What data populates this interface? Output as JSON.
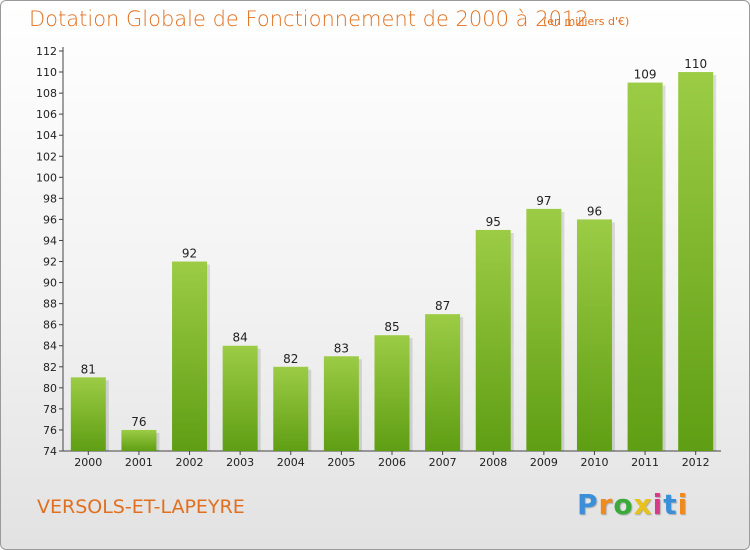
{
  "chart_data": {
    "type": "bar",
    "title": "Dotation Globale de Fonctionnement de 2000 à 2012",
    "subtitle": "(en milliers d'€)",
    "categories": [
      "2000",
      "2001",
      "2002",
      "2003",
      "2004",
      "2005",
      "2006",
      "2007",
      "2008",
      "2009",
      "2010",
      "2011",
      "2012"
    ],
    "values": [
      81,
      76,
      92,
      84,
      82,
      83,
      85,
      87,
      95,
      97,
      96,
      109,
      110
    ],
    "ylim": [
      74,
      112
    ],
    "yticks": [
      74,
      76,
      78,
      80,
      82,
      84,
      86,
      88,
      90,
      92,
      94,
      96,
      98,
      100,
      102,
      104,
      106,
      108,
      110,
      112
    ],
    "grid": false,
    "bar_color_top": "#9ccc45",
    "bar_color_bottom": "#5f9e14"
  },
  "footer": {
    "commune": "VERSOLS-ET-LAPEYRE",
    "logo_letters": [
      "P",
      "r",
      "o",
      "x",
      "i",
      "t",
      "i"
    ],
    "logo_colors": [
      "#3a8fd8",
      "#f08a1c",
      "#3aaa3a",
      "#e8c21a",
      "#d83a8a",
      "#3a8fd8",
      "#f08a1c"
    ]
  }
}
